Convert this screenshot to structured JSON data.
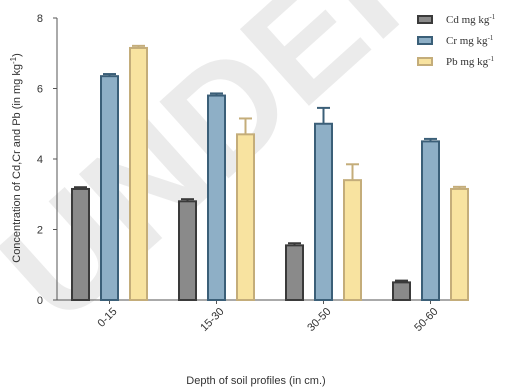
{
  "chart_data": {
    "type": "bar",
    "categories": [
      "0-15",
      "15-30",
      "30-50",
      "50-60"
    ],
    "series": [
      {
        "name": "Cd mg kg",
        "name_sup": "-1",
        "values": [
          3.15,
          2.8,
          1.55,
          0.5
        ],
        "errors": [
          0.05,
          0.06,
          0.06,
          0.05
        ],
        "fill": "#8a8a8a",
        "stroke": "#3a3a3a"
      },
      {
        "name": "Cr mg kg",
        "name_sup": "-1",
        "values": [
          6.35,
          5.8,
          5.0,
          4.5
        ],
        "errors": [
          0.06,
          0.06,
          0.45,
          0.07
        ],
        "fill": "#8eafc6",
        "stroke": "#3b5f78"
      },
      {
        "name": "Pb mg kg",
        "name_sup": "-1",
        "values": [
          7.15,
          4.7,
          3.4,
          3.15
        ],
        "errors": [
          0.06,
          0.45,
          0.45,
          0.06
        ],
        "fill": "#f8e3a0",
        "stroke": "#c4ad7a"
      }
    ],
    "ylim": [
      0,
      8
    ],
    "yticks": [
      "0",
      "2",
      "4",
      "6",
      "8"
    ],
    "ylabel": "Concentration of Cd,Cr and Pb (in mg kg",
    "ylabel_sup": "-1",
    "ylabel_end": ")",
    "xlabel": "Depth of soil profiles (in cm.)",
    "legend_position": "top-right",
    "grid": false
  },
  "watermark": {
    "text": "UNDER REVIEW",
    "color": "#c8c8c8"
  }
}
